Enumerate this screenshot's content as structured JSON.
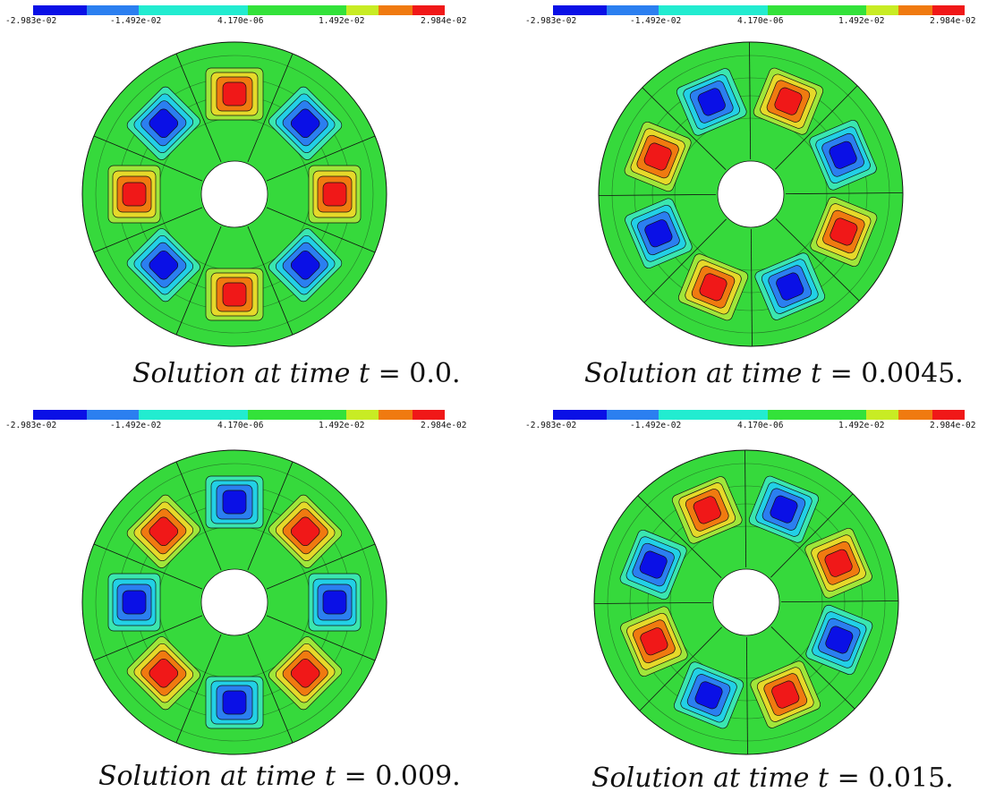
{
  "colorbar": {
    "colors": [
      "#0a10e6",
      "#2b7ff0",
      "#22ecd0",
      "#33e23a",
      "#c8ec24",
      "#f07a10",
      "#f01818"
    ],
    "tick_labels": [
      "-2.983e-02",
      "-1.492e-02",
      "4.170e-06",
      "1.492e-02",
      "2.984e-02"
    ]
  },
  "panels": [
    {
      "caption_label": "Solution at time",
      "caption_var": "t",
      "caption_eq": "=",
      "caption_value": "0.0."
    },
    {
      "caption_label": "Solution at time",
      "caption_var": "t",
      "caption_eq": "=",
      "caption_value": "0.0045."
    },
    {
      "caption_label": "Solution at time",
      "caption_var": "t",
      "caption_eq": "=",
      "caption_value": "0.009."
    },
    {
      "caption_label": "Solution at time",
      "caption_var": "t",
      "caption_eq": "=",
      "caption_value": "0.015."
    }
  ],
  "field_colors": {
    "ring": "#36d93c",
    "positive": [
      "#f07a10",
      "#e6d92a",
      "#f01818",
      "#a0e63a"
    ],
    "negative": [
      "#2b7ff0",
      "#22d0e6",
      "#0a10e6",
      "#3ae6b0"
    ]
  }
}
